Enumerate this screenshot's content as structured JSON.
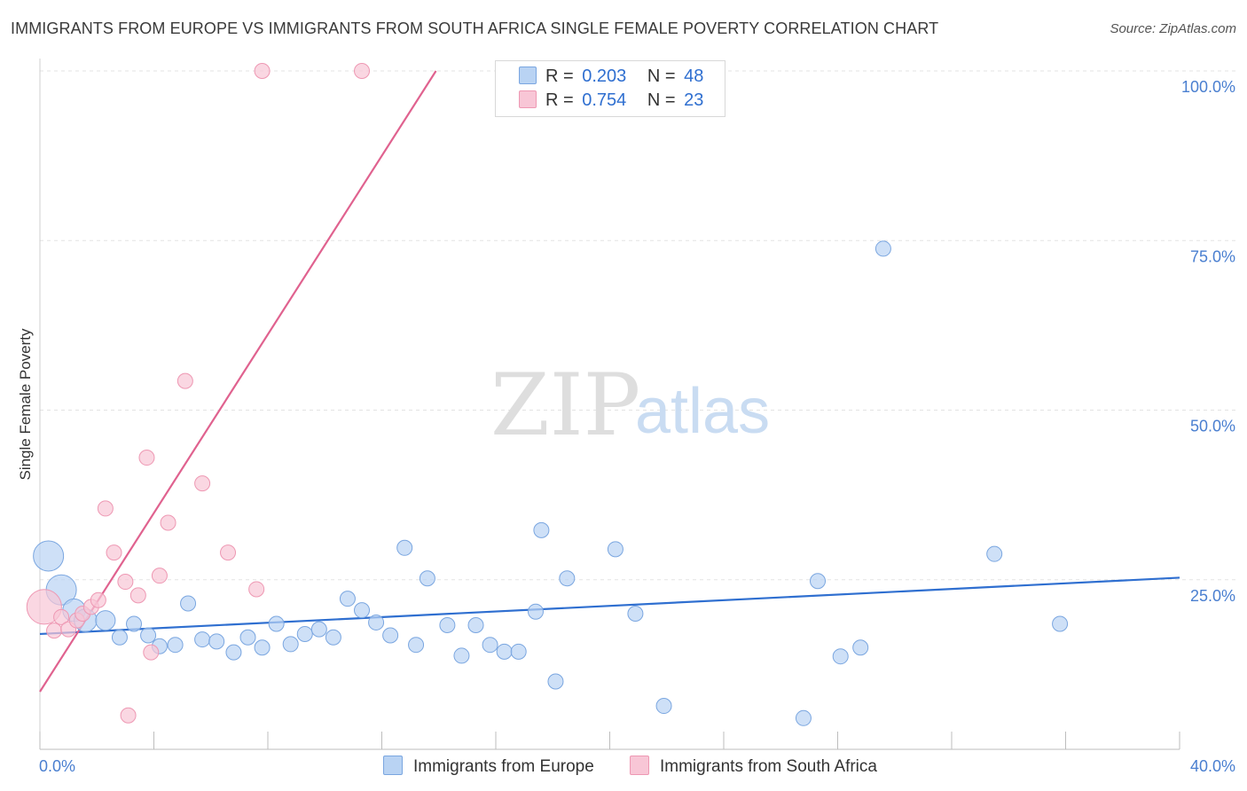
{
  "title": "IMMIGRANTS FROM EUROPE VS IMMIGRANTS FROM SOUTH AFRICA SINGLE FEMALE POVERTY CORRELATION CHART",
  "source": "Source: ZipAtlas.com",
  "watermark": {
    "zip": "ZIP",
    "atlas": "atlas"
  },
  "colors": {
    "europe_fill": "#b9d3f3",
    "europe_stroke": "#7aa6e0",
    "europe_line": "#2f6fd0",
    "safrica_fill": "#f8c6d6",
    "safrica_stroke": "#ee98b3",
    "safrica_line": "#e0628f",
    "grid": "#e3e3e3",
    "axis_text": "#4a7fd0"
  },
  "legend": {
    "rows": [
      {
        "r_label": "R =",
        "r_value": "0.203",
        "n_label": "N =",
        "n_value": "48"
      },
      {
        "r_label": "R =",
        "r_value": "0.754",
        "n_label": "N =",
        "n_value": "23"
      }
    ]
  },
  "chart_data": {
    "type": "scatter",
    "title": "IMMIGRANTS FROM EUROPE VS IMMIGRANTS FROM SOUTH AFRICA SINGLE FEMALE POVERTY CORRELATION CHART",
    "xlabel": "",
    "ylabel": "Single Female Poverty",
    "xlim": [
      0,
      40
    ],
    "ylim": [
      0,
      100
    ],
    "x_tick_labels": [
      "0.0%",
      "40.0%"
    ],
    "y_ticks": [
      25,
      50,
      75,
      100
    ],
    "y_tick_labels": [
      "25.0%",
      "50.0%",
      "75.0%",
      "100.0%"
    ],
    "grid": true,
    "legend_position": "bottom",
    "series": [
      {
        "name": "Immigrants from Europe",
        "r": 0.203,
        "n": 48,
        "trend": {
          "x": [
            0,
            40
          ],
          "y": [
            17.0,
            25.3
          ]
        },
        "points": [
          {
            "x": 0.3,
            "y": 28.5,
            "s": 2
          },
          {
            "x": 0.75,
            "y": 23.5,
            "s": 2
          },
          {
            "x": 1.2,
            "y": 20.5,
            "s": 1.5
          },
          {
            "x": 1.6,
            "y": 19,
            "s": 1.5
          },
          {
            "x": 2.3,
            "y": 19,
            "s": 1.3
          },
          {
            "x": 2.8,
            "y": 16.5,
            "s": 1
          },
          {
            "x": 3.3,
            "y": 18.5,
            "s": 1
          },
          {
            "x": 3.8,
            "y": 16.8,
            "s": 1
          },
          {
            "x": 4.2,
            "y": 15.2,
            "s": 1
          },
          {
            "x": 4.75,
            "y": 15.4,
            "s": 1
          },
          {
            "x": 5.2,
            "y": 21.5,
            "s": 1
          },
          {
            "x": 5.7,
            "y": 16.2,
            "s": 1
          },
          {
            "x": 6.2,
            "y": 15.9,
            "s": 1
          },
          {
            "x": 6.8,
            "y": 14.3,
            "s": 1
          },
          {
            "x": 7.3,
            "y": 16.5,
            "s": 1
          },
          {
            "x": 7.8,
            "y": 15,
            "s": 1
          },
          {
            "x": 8.3,
            "y": 18.5,
            "s": 1
          },
          {
            "x": 8.8,
            "y": 15.5,
            "s": 1
          },
          {
            "x": 9.3,
            "y": 17,
            "s": 1
          },
          {
            "x": 9.8,
            "y": 17.7,
            "s": 1
          },
          {
            "x": 10.3,
            "y": 16.5,
            "s": 1
          },
          {
            "x": 10.8,
            "y": 22.2,
            "s": 1
          },
          {
            "x": 11.3,
            "y": 20.5,
            "s": 1
          },
          {
            "x": 11.8,
            "y": 18.7,
            "s": 1
          },
          {
            "x": 12.3,
            "y": 16.8,
            "s": 1
          },
          {
            "x": 12.8,
            "y": 29.7,
            "s": 1
          },
          {
            "x": 13.2,
            "y": 15.4,
            "s": 1
          },
          {
            "x": 13.6,
            "y": 25.2,
            "s": 1
          },
          {
            "x": 14.3,
            "y": 18.3,
            "s": 1
          },
          {
            "x": 14.8,
            "y": 13.8,
            "s": 1
          },
          {
            "x": 15.3,
            "y": 18.3,
            "s": 1
          },
          {
            "x": 15.8,
            "y": 15.4,
            "s": 1
          },
          {
            "x": 16.3,
            "y": 14.4,
            "s": 1
          },
          {
            "x": 16.8,
            "y": 14.4,
            "s": 1
          },
          {
            "x": 17.4,
            "y": 20.3,
            "s": 1
          },
          {
            "x": 17.6,
            "y": 32.3,
            "s": 1
          },
          {
            "x": 18.1,
            "y": 10,
            "s": 1
          },
          {
            "x": 18.5,
            "y": 25.2,
            "s": 1
          },
          {
            "x": 20.2,
            "y": 29.5,
            "s": 1
          },
          {
            "x": 20.9,
            "y": 20,
            "s": 1
          },
          {
            "x": 21.9,
            "y": 6.4,
            "s": 1
          },
          {
            "x": 26.8,
            "y": 4.6,
            "s": 1
          },
          {
            "x": 27.3,
            "y": 24.8,
            "s": 1
          },
          {
            "x": 28.1,
            "y": 13.7,
            "s": 1
          },
          {
            "x": 28.8,
            "y": 15,
            "s": 1
          },
          {
            "x": 29.6,
            "y": 73.8,
            "s": 1
          },
          {
            "x": 33.5,
            "y": 28.8,
            "s": 1
          },
          {
            "x": 35.8,
            "y": 18.5,
            "s": 1
          }
        ]
      },
      {
        "name": "Immigrants from South Africa",
        "r": 0.754,
        "n": 23,
        "trend": {
          "x": [
            0,
            13.9
          ],
          "y": [
            8.5,
            100
          ]
        },
        "points": [
          {
            "x": 0.15,
            "y": 21,
            "s": 2.3
          },
          {
            "x": 0.5,
            "y": 17.5,
            "s": 1
          },
          {
            "x": 0.75,
            "y": 19.5,
            "s": 1
          },
          {
            "x": 1.0,
            "y": 17.7,
            "s": 1
          },
          {
            "x": 1.3,
            "y": 19,
            "s": 1
          },
          {
            "x": 1.5,
            "y": 20,
            "s": 1
          },
          {
            "x": 1.8,
            "y": 21,
            "s": 1
          },
          {
            "x": 2.05,
            "y": 22,
            "s": 1
          },
          {
            "x": 2.3,
            "y": 35.5,
            "s": 1
          },
          {
            "x": 2.6,
            "y": 29,
            "s": 1
          },
          {
            "x": 3.0,
            "y": 24.7,
            "s": 1
          },
          {
            "x": 3.1,
            "y": 5,
            "s": 1
          },
          {
            "x": 3.45,
            "y": 22.7,
            "s": 1
          },
          {
            "x": 3.75,
            "y": 43,
            "s": 1
          },
          {
            "x": 3.9,
            "y": 14.3,
            "s": 1
          },
          {
            "x": 4.2,
            "y": 25.6,
            "s": 1
          },
          {
            "x": 4.5,
            "y": 33.4,
            "s": 1
          },
          {
            "x": 5.1,
            "y": 54.3,
            "s": 1
          },
          {
            "x": 5.7,
            "y": 39.2,
            "s": 1
          },
          {
            "x": 6.6,
            "y": 29,
            "s": 1
          },
          {
            "x": 7.6,
            "y": 23.6,
            "s": 1
          },
          {
            "x": 7.8,
            "y": 100,
            "s": 1
          },
          {
            "x": 11.3,
            "y": 100,
            "s": 1
          }
        ]
      }
    ]
  }
}
